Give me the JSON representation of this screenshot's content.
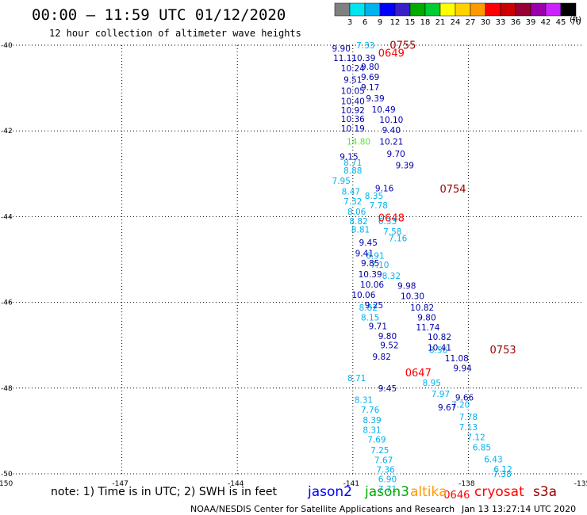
{
  "header": {
    "title": "00:00 – 11:59 UTC 01/12/2020",
    "subtitle": "12 hour collection of altimeter wave heights"
  },
  "legend": {
    "labels": [
      "3",
      "6",
      "9",
      "12",
      "15",
      "18",
      "21",
      "24",
      "27",
      "30",
      "33",
      "36",
      "39",
      "42",
      "45",
      "70"
    ],
    "unit": "(ft)",
    "colors": [
      "#808080",
      "#00e5ee",
      "#00b2ee",
      "#0000ff",
      "#3a1fcc",
      "#00aa00",
      "#00cc33",
      "#ffff00",
      "#ffd200",
      "#ff9900",
      "#ff0000",
      "#cc0000",
      "#990033",
      "#9900aa",
      "#cc22ff",
      "#000000"
    ]
  },
  "footer": {
    "note": "note:  1) Time is in UTC; 2) SWH is in feet",
    "satellites": [
      {
        "name": "jason2",
        "color": "#0000ff"
      },
      {
        "name": "jason3",
        "color": "#00aa00"
      },
      {
        "name": "altika",
        "color": "#ff9900"
      },
      {
        "name": "cryosat",
        "color": "#ff0000"
      },
      {
        "name": "s3a",
        "color": "#990000"
      }
    ],
    "credit": "NOAA/NESDIS Center for Satellite Applications and Research",
    "timestamp": "Jan 13 13:27:14 UTC 2020"
  },
  "chart_data": {
    "type": "scatter",
    "xlim": [
      -150,
      -135
    ],
    "ylim": [
      -50,
      -40
    ],
    "x_ticks": [
      "-150",
      "-147",
      "-144",
      "-141",
      "-138",
      "-135"
    ],
    "y_ticks": [
      "-40",
      "-42",
      "-44",
      "-46",
      "-48",
      "-50"
    ],
    "grid": true,
    "series": [
      {
        "color": "#00b2ee",
        "points": [
          [
            -140.67,
            -40.0,
            "7.33"
          ],
          [
            -140.42,
            -44.91,
            "6.91"
          ],
          [
            -140.3,
            -45.12,
            "7.10"
          ],
          [
            -140.0,
            -45.38,
            "8.32"
          ],
          [
            -140.45,
            -43.51,
            "8.35"
          ],
          [
            -140.33,
            -43.73,
            "7.78"
          ],
          [
            -140.1,
            -44.1,
            "6.33"
          ],
          [
            -139.97,
            -44.34,
            "7.58"
          ],
          [
            -139.83,
            -44.5,
            "7.16"
          ],
          [
            -138.78,
            -47.11,
            "8.56"
          ],
          [
            -138.95,
            -47.87,
            "8.95"
          ],
          [
            -138.72,
            -48.13,
            "7.97"
          ],
          [
            -138.2,
            -48.38,
            "7.20"
          ],
          [
            -138.0,
            -48.67,
            "7.78"
          ],
          [
            -138.0,
            -48.91,
            "7.13"
          ],
          [
            -137.8,
            -49.14,
            "7.12"
          ],
          [
            -137.65,
            -49.38,
            "6.85"
          ],
          [
            -137.35,
            -49.66,
            "6.43"
          ],
          [
            -137.1,
            -49.89,
            "6.12"
          ],
          [
            -137.12,
            -50.0,
            "7.38"
          ],
          [
            -141.0,
            -42.74,
            "8.71"
          ],
          [
            -141.0,
            -42.92,
            "8.88"
          ],
          [
            -141.3,
            -43.16,
            "7.95"
          ],
          [
            -141.05,
            -43.41,
            "8.47"
          ],
          [
            -141.0,
            -43.64,
            "7.32"
          ],
          [
            -140.9,
            -43.88,
            "8.06"
          ],
          [
            -140.85,
            -44.1,
            "8.82"
          ],
          [
            -140.8,
            -44.3,
            "8.81"
          ],
          [
            -140.6,
            -46.12,
            "8.82"
          ],
          [
            -140.55,
            -46.35,
            "8.15"
          ],
          [
            -140.9,
            -47.76,
            "8.71"
          ],
          [
            -140.72,
            -48.27,
            "8.31"
          ],
          [
            -140.55,
            -48.5,
            "7.76"
          ],
          [
            -140.5,
            -48.74,
            "8.39"
          ],
          [
            -140.5,
            -48.97,
            "8.31"
          ],
          [
            -140.38,
            -49.2,
            "7.69"
          ],
          [
            -140.3,
            -49.45,
            "7.25"
          ],
          [
            -140.2,
            -49.68,
            "7.67"
          ],
          [
            -140.15,
            -49.9,
            "7.36"
          ],
          [
            -140.1,
            -50.12,
            "6.90"
          ],
          [
            -140.1,
            -50.35,
            "7.71"
          ]
        ]
      },
      {
        "color": "#0000aa",
        "points": [
          [
            -141.3,
            -40.07,
            "9.90"
          ],
          [
            -141.2,
            -40.3,
            "11.11"
          ],
          [
            -141.0,
            -40.54,
            "10.24"
          ],
          [
            -141.0,
            -40.8,
            "9.51"
          ],
          [
            -141.0,
            -41.06,
            "10.05"
          ],
          [
            -141.0,
            -41.3,
            "10.40"
          ],
          [
            -141.0,
            -41.52,
            "10.92"
          ],
          [
            -141.0,
            -41.72,
            "10.36"
          ],
          [
            -141.0,
            -41.94,
            "10.19"
          ],
          [
            -140.72,
            -40.3,
            "10.39"
          ],
          [
            -140.55,
            -40.5,
            "9.80"
          ],
          [
            -140.55,
            -40.74,
            "9.69"
          ],
          [
            -140.55,
            -40.98,
            "9.17"
          ],
          [
            -140.42,
            -41.24,
            "9.39"
          ],
          [
            -140.2,
            -41.5,
            "10.49"
          ],
          [
            -140.0,
            -41.74,
            "10.10"
          ],
          [
            -140.0,
            -41.98,
            "9.40"
          ],
          [
            -140.0,
            -42.25,
            "10.21"
          ],
          [
            -139.88,
            -42.53,
            "9.70"
          ],
          [
            -139.65,
            -42.8,
            "9.39"
          ],
          [
            -140.18,
            -43.34,
            "9.16"
          ],
          [
            -141.1,
            -42.6,
            "9.15"
          ],
          [
            -140.6,
            -44.6,
            "9.45"
          ],
          [
            -140.7,
            -44.85,
            "9.41"
          ],
          [
            -140.55,
            -45.08,
            "9.85"
          ],
          [
            -140.55,
            -45.34,
            "10.39"
          ],
          [
            -140.5,
            -45.58,
            "10.06"
          ],
          [
            -140.72,
            -45.82,
            "10.06"
          ],
          [
            -140.45,
            -46.06,
            "9.25"
          ],
          [
            -140.35,
            -46.55,
            "9.71"
          ],
          [
            -140.1,
            -46.78,
            "9.80"
          ],
          [
            -140.05,
            -47.0,
            "9.52"
          ],
          [
            -140.25,
            -47.26,
            "9.82"
          ],
          [
            -140.1,
            -48.0,
            "9.45"
          ],
          [
            -139.6,
            -45.61,
            "9.98"
          ],
          [
            -139.45,
            -45.85,
            "10.30"
          ],
          [
            -139.2,
            -46.12,
            "10.82"
          ],
          [
            -139.08,
            -46.35,
            "9.80"
          ],
          [
            -139.05,
            -46.58,
            "11.74"
          ],
          [
            -138.75,
            -46.8,
            "10.82"
          ],
          [
            -138.75,
            -47.05,
            "10.41"
          ],
          [
            -138.3,
            -47.3,
            "11.08"
          ],
          [
            -138.15,
            -47.53,
            "9.94"
          ],
          [
            -138.1,
            -48.22,
            "9.66"
          ],
          [
            -138.55,
            -48.45,
            "9.67"
          ]
        ]
      },
      {
        "color": "#66dd44",
        "points": [
          [
            -140.85,
            -42.25,
            "14.80"
          ]
        ]
      },
      {
        "color": "#ff0000",
        "points": [
          [
            -140.0,
            -40.19,
            "0649"
          ],
          [
            -140.0,
            -44.04,
            "0648"
          ],
          [
            -139.3,
            -47.65,
            "0647"
          ],
          [
            -138.3,
            -50.5,
            "0646"
          ]
        ]
      },
      {
        "color": "#990000",
        "points": [
          [
            -139.7,
            -40.01,
            "0755"
          ],
          [
            -138.4,
            -43.36,
            "0754"
          ],
          [
            -137.1,
            -47.12,
            "0753"
          ]
        ]
      }
    ]
  }
}
